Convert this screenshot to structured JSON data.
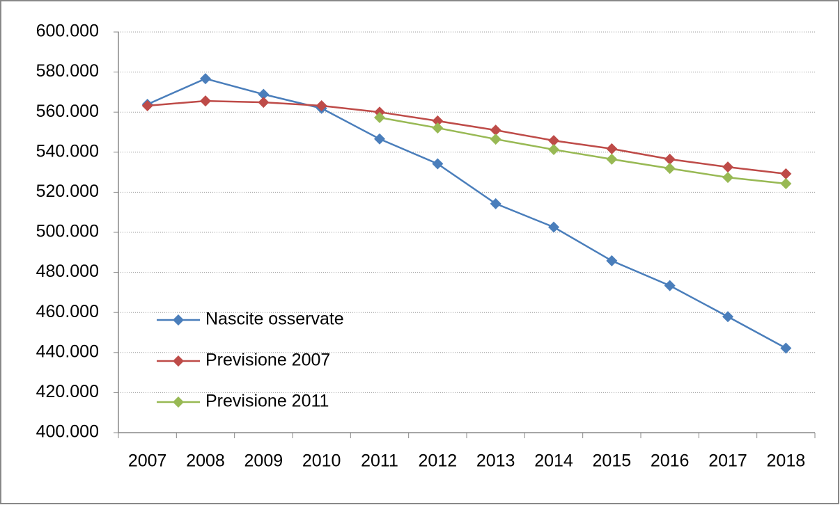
{
  "chart_data": {
    "type": "line",
    "categories": [
      "2007",
      "2008",
      "2009",
      "2010",
      "2011",
      "2012",
      "2013",
      "2014",
      "2015",
      "2016",
      "2017",
      "2018"
    ],
    "series": [
      {
        "name": "Nascite osservate",
        "color": "#4a7ebb",
        "values": [
          563900,
          576700,
          568900,
          561900,
          546600,
          534200,
          514300,
          502600,
          485800,
          473400,
          457900,
          442200
        ]
      },
      {
        "name": "Previsione 2007",
        "color": "#be4b48",
        "values": [
          563200,
          565600,
          564900,
          563200,
          560000,
          555600,
          551000,
          545800,
          541700,
          536500,
          532600,
          529200
        ]
      },
      {
        "name": "Previsione 2011",
        "color": "#98b954",
        "values": [
          null,
          null,
          null,
          null,
          557300,
          552100,
          546500,
          541300,
          536500,
          531900,
          527400,
          524300
        ]
      }
    ],
    "ylim": [
      400000,
      600000
    ],
    "yticks": [
      {
        "value": 400000,
        "label": "400.000"
      },
      {
        "value": 420000,
        "label": "420.000"
      },
      {
        "value": 440000,
        "label": "440.000"
      },
      {
        "value": 460000,
        "label": "460.000"
      },
      {
        "value": 480000,
        "label": "480.000"
      },
      {
        "value": 500000,
        "label": "500.000"
      },
      {
        "value": 520000,
        "label": "520.000"
      },
      {
        "value": 540000,
        "label": "540.000"
      },
      {
        "value": 560000,
        "label": "560.000"
      },
      {
        "value": 580000,
        "label": "580.000"
      },
      {
        "value": 600000,
        "label": "600.000"
      }
    ],
    "grid": true,
    "legend": "lower-left"
  }
}
